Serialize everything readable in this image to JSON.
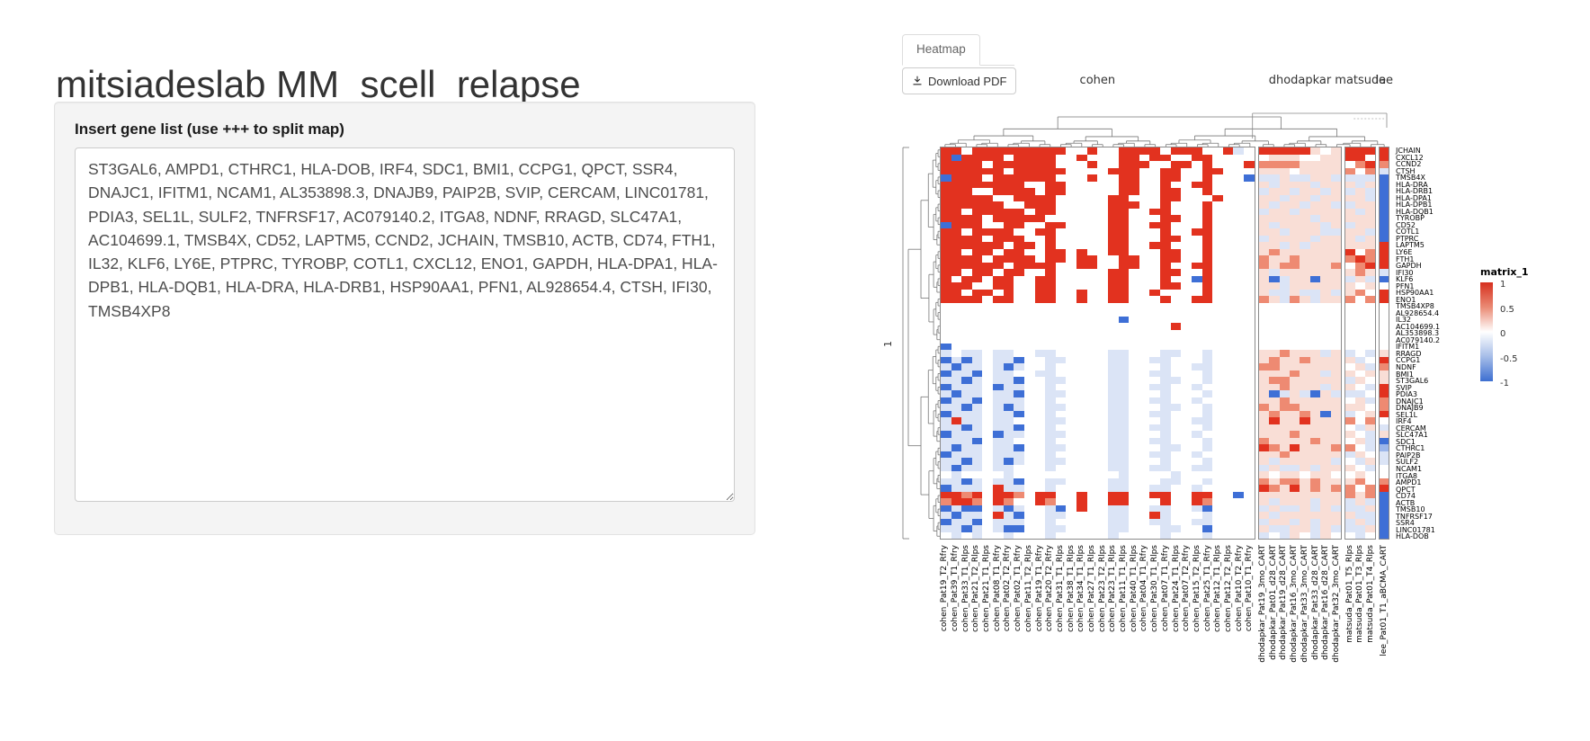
{
  "header": {
    "title": "mitsiadeslab MM_scell_relapse"
  },
  "gene_panel": {
    "label": "Insert gene list (use +++ to split map)",
    "textarea_value": "ST3GAL6, AMPD1, CTHRC1, HLA-DOB, IRF4, SDC1, BMI1, CCPG1, QPCT, SSR4, DNAJC1, IFITM1, NCAM1, AL353898.3, DNAJB9, PAIP2B, SVIP, CERCAM, LINC01781, PDIA3, SEL1L, SULF2, TNFRSF17, AC079140.2, ITGA8, NDNF, RRAGD, SLC47A1, AC104699.1, TMSB4X, CD52, LAPTM5, CCND2, JCHAIN, TMSB10, ACTB, CD74, FTH1, IL32, KLF6, LY6E, PTPRC, TYROBP, COTL1, CXCL12, ENO1, GAPDH, HLA-DPA1, HLA-DPB1, HLA-DQB1, HLA-DRA, HLA-DRB1, HSP90AA1, PFN1, AL928654.4, CTSH, IFI30, TMSB4XP8"
  },
  "tabs": {
    "heatmap_label": "Heatmap"
  },
  "toolbar": {
    "download_label": "Download PDF",
    "download_icon": "download-icon"
  },
  "chart_data": {
    "type": "heatmap",
    "title": "",
    "row_slice_label": "1",
    "legend": {
      "title": "matrix_1",
      "ticks": [
        "1",
        "0.5",
        "0",
        "-0.5",
        "-1"
      ],
      "position": "right"
    },
    "colors": {
      "R": "#e2321f",
      "r": "#ee8a72",
      "p": "#f9ded6",
      "W": "#ffffff",
      "b": "#dbe4f6",
      "m": "#9cb6ea",
      "B": "#3e6fd6"
    },
    "value_scale": {
      "R": 1,
      "r": 0.5,
      "p": 0.2,
      "W": 0,
      "b": -0.2,
      "m": -0.5,
      "B": -1
    },
    "column_groups": [
      {
        "name": "cohen",
        "count": 30
      },
      {
        "name": "dhodapkar",
        "count": 8
      },
      {
        "name": "matsuda",
        "count": 3
      },
      {
        "name": "lee",
        "count": 1
      }
    ],
    "columns": [
      "cohen_Pat19_T2_Rfry",
      "cohen_Pat39_T1_Rfry",
      "cohen_Pat33_T1_Rlps",
      "cohen_Pat21_T2_Rlps",
      "cohen_Pat21_T1_Rlps",
      "cohen_Pat08_T1_Rfry",
      "cohen_Pat02_T2_Rfry",
      "cohen_Pat02_T1_Rfry",
      "cohen_Pat11_T2_Rlps",
      "cohen_Pat19_T1_Rfry",
      "cohen_Pat20_T2_Rfry",
      "cohen_Pat31_T1_Rlps",
      "cohen_Pat38_T1_Rlps",
      "cohen_Pat34_T1_Rlps",
      "cohen_Pat27_T1_Rlps",
      "cohen_Pat23_T2_Rlps",
      "cohen_Pat23_T1_Rlps",
      "cohen_Pat11_T1_Rlps",
      "cohen_Pat40_T1_Rlps",
      "cohen_Pat04_T1_Rfry",
      "cohen_Pat30_T1_Rlps",
      "cohen_Pat07_T1_Rfry",
      "cohen_Pat24_T1_Rlps",
      "cohen_Pat07_T2_Rfry",
      "cohen_Pat15_T2_Rlps",
      "cohen_Pat25_T1_Rfry",
      "cohen_Pat12_T1_Rlps",
      "cohen_Pat12_T2_Rlps",
      "cohen_Pat10_T2_Rfry",
      "cohen_Pat10_T1_Rfry",
      "dhodapkar_Pat19_3mo_CART",
      "dhodapkar_Pat01_d28_CART",
      "dhodapkar_Pat19_d28_CART",
      "dhodapkar_Pat16_3mo_CART",
      "dhodapkar_Pat33_3mo_CART",
      "dhodapkar_Pat33_d28_CART",
      "dhodapkar_Pat16_d28_CART",
      "dhodapkar_Pat32_3mo_CART",
      "matsuda_Pat01_T5_Rlps",
      "matsuda_Pat01_T3_Rlps",
      "matsuda_Pat01_T4_Rlps",
      "lee_Pat01_T1_aBCMA_CART"
    ],
    "rows": [
      "JCHAIN",
      "CXCL12",
      "CCND2",
      "CTSH",
      "TMSB4X",
      "HLA-DRA",
      "HLA-DRB1",
      "HLA-DPA1",
      "HLA-DPB1",
      "HLA-DQB1",
      "TYROBP",
      "CD52",
      "COTL1",
      "PTPRC",
      "LAPTM5",
      "LY6E",
      "FTH1",
      "GAPDH",
      "IFI30",
      "KLF6",
      "PFN1",
      "HSP90AA1",
      "ENO1",
      "TMSB4XP8",
      "AL928654.4",
      "IL32",
      "AC104699.1",
      "AL353898.3",
      "AC079140.2",
      "IFITM1",
      "RRAGD",
      "CCPG1",
      "NDNF",
      "BMI1",
      "ST3GAL6",
      "SVIP",
      "PDIA3",
      "DNAJC1",
      "DNAJB9",
      "SEL1L",
      "IRF4",
      "CERCAM",
      "SLC47A1",
      "SDC1",
      "CTHRC1",
      "PAIP2B",
      "SULF2",
      "NCAM1",
      "ITGA8",
      "AMPD1",
      "QPCT",
      "CD74",
      "ACTB",
      "TMSB10",
      "TNFRSF17",
      "SSR4",
      "LINC01781",
      "HLA-DOB"
    ],
    "cells": [
      "RRWRRRRRRRRRWWRWWRRRRWRRRWWRbWRRRRRpWpRRRR",
      "RBRRRRWRRRRWWRWWWRRWRRWWRRWWWWWpppWWppRRWR",
      "RRRRWRRRRRRWWWRWWRRRWWRRWRWWWRrrrrppppWrRr",
      "RRRRRRWRRRRRWWWWRRRWWRRWWRRWWWpppWpppprWrb",
      "BRRRWRRRRRRWWWRWWRRWWRRWWRWWWBbbpbbppbbbbB",
      "RRRRRRRRWWRRWWWWWRRWWRWWRRWWWWpbpppbpppbpB",
      "RRRWWRRRRWRRWWWWWRRWWRRWWRWWWWbppbppbpbpbB",
      "RRRRRWWRRRRWWWWWRRWWWRRWWWRWWWppbppbppppbB",
      "RRRRRRWWRRRWWWWWRRRWWRWWWRWWWWpbppbppbbppB",
      "RRWRRRRRWRRWWWWWRRWWRRWWWRWWWWbppbpppppbpB",
      "RRRRWRRRRRWWWWWWRRWWWRRWWRWWWWpppppbpppppB",
      "BRRRWWRRWWRRWWWWRRWWRRWWWRWWWWpbppppbpbppB",
      "RRWRRRRWWRRWWWWWRRWWWRWWRRWWWWppbpppbbppbB",
      "RRRRWRRRWWRWWWWWRRWWWRRWWRWWWWbppppbpppbpB",
      "RRRRRRWRRWRWWWWWRRWWRRWWWRWWWWppbpbppppppR",
      "RRWRRWRRWWRRWRWWRRWWWRRWWRWWWWprppppppRWrR",
      "RRRRWRRRRWRRWRRWWRRWWRRWWRWWWWrpprpppprRrR",
      "RRRRRRWRRRRWWRRWWRRWWRWWRRWWWWrprrppprWrRR",
      "RRWRRWRRWWRWWWWWRRWWWRRWWRWWWWpbppppppprpb",
      "RWRRWRRWWRRWWWWWRRWWWRWWBRWWWWpBbppBppbpbB",
      "RRRWWRRWWRRWWWWWRRWWWRRWWRWWWWppbppppppWpW",
      "RRWRRWRWWRRWWRWWRRWWRWWWWRWWWWpbbpbbpbprWR",
      "RRRRWRRWWRRWWRWWRRWWWRWWRRWWWWrpbrpbpprWrR",
      "WWWWWWWWWWWWWWWWWWWWWWWWWWWWWWWWWWWWWWWWWW",
      "WWWWWWWWWWWWWWWWWWWWWWWWWWWWWWWWWWWWWWWWWW",
      "WWWWWWWWWWWWWWWWWBWWWWWWWWWWWWWWWWWWWWWWWW",
      "WWWWWWWWWWWWWWWWWWWWWWRWWWWWWWWWWWWWWWWWWW",
      "WWWWWWWWWWWWWWWWWWWWWWWWWWWWWWWWWWWWWWWWWW",
      "WWWWWWWWWWWWWWWWWWWWWWWWWWWWWWWWWWWWWWWWWW",
      "BWWWWWWWWWWWWWWWWWWWWWWWWWWWWWWWWWWWWWWWWW",
      "bWbbWbbWWbbWWWWWbbWWWbbWWbWWWWpprpppbpbWbp",
      "BbBbWbbBWWbbWWWWbbWWbbWWWbWWWWprpprppppbWR",
      "bBbbWbBbWWbWWWWWbbWWWbWWbbWWWWrrppppppWpbr",
      "BbbBWbbWWbbWWWWWbbWWbbWWWbWWWWppprppbppWpp",
      "bbBbWbbBWWbbWWWWbbWWWbbWWbWWWWprrpppppbpWp",
      "BbbbWBbbWWbWWWWWbbWWbbWWbWWWWWpprpppbppWbR",
      "bBbbWbbBWWbbWWWWbbWWWbWWWbWWWWpBbpbBpbbbWR",
      "BbbBWbbbWWbWWWWWbbWWbbWWbWWWWWpprpppppWpbr",
      "bbBbWbBbWWbbWWWWbbWWWbbWWbWWWWrprrppppppWr",
      "BbbbWbbBWWbWWWWWbbWWbbWWWbWWWWprpprpBpbWpR",
      "bRbbWbbWWWbbWWWWbbWWWbWWbbWWWWpRppRppprWrW",
      "bbBbWbbBWWbWWWWWbbWWbbWWWbWWWWppppppppWbpb",
      "BbbbWBbbWWbbWWWWbbWWWbWWbWWWWWppprpppppWbp",
      "bbbBWbbWWWbWWWWWbbWWbbWWWbWWWWrpppprppWpbB",
      "bBbbWbbBWWbbWWWWbbWWWbbWWbWWWWRrpRppprrWbm",
      "BbbbWbbbWWbWWWWWbbWWbbWWbWWWWWpprpppppbpWb",
      "bbBbWbBbWWbbWWWWbbWWWbWWWbWWWWpbpppppbWbpb",
      "bBbbWbbWWWbWWWWWbbWWbbWWbbWWWWbpbbpbpppWbW",
      "WbWWWWbWWWWWWWWWWbWWWWbWWWWWWWpWppWppWWpWW",
      "bbBbWbbBWWbbWWWWbbWWWbbWWbWWWWrprrprppprWr",
      "BbbbWRbbWWbWWWWWbbWWbbWWbWWWWWRrpRprprrWrR",
      "RRrRWRRrWRRWWRWWRRWWRRWWRRWWBWpppppppprprB",
      "rRRrWRrWWRrWWRWWRRWWWRWWRrWWWWpbpppbppbpbB",
      "BbBBWbBbWWbBWRWWbbWWbbWWbBWWWWbpbbpbpbbbpB",
      "bBbbWRbBWWbbWWWWbbWWRbWWWbWWWWpbpppppppbbB",
      "BbbBWbbbWWbWWWWWbbWWbbWWbbWWWWbppbpbppbpbB",
      "bbBbWbBBWWbbWWWWbbWWWbbWWBWWWWpbbppbpbbbpB",
      "WbWbWWbWWWbWWWWWbWWWWbWWWbWWWWbWbpWbpWWbWB"
    ]
  }
}
